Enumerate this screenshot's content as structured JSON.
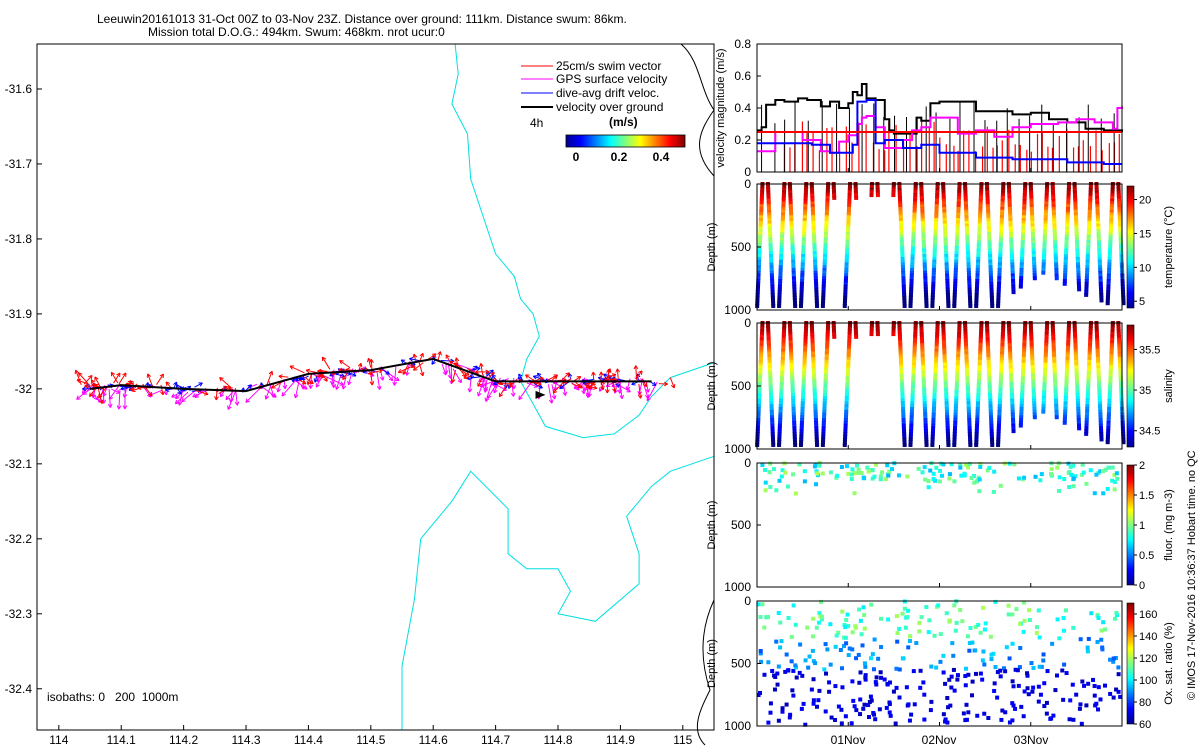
{
  "header": {
    "line1": "Leeuwin20161013 31-Oct 00Z to 03-Nov 23Z. Distance over ground: 111km. Distance swum: 86km.",
    "line2": "Mission total D.O.G.: 494km. Swum: 468km. nrot ucur:0"
  },
  "footer": {
    "copyright": "© IMOS 17-Nov-2016 10:36:37 Hobart time. no QC"
  },
  "colors": {
    "swim": "#ff0000",
    "gps": "#ff00ff",
    "drift": "#0000ff",
    "ground": "#000000",
    "isobath": "#00e0e0"
  },
  "chart_data": [
    {
      "type": "map",
      "x_ticks": [
        "114",
        "114.1",
        "114.2",
        "114.3",
        "114.4",
        "114.5",
        "114.6",
        "114.7",
        "114.8",
        "114.9",
        "115"
      ],
      "y_ticks": [
        "-31.6",
        "-31.7",
        "-31.8",
        "-31.9",
        "-32",
        "-32.1",
        "-32.2",
        "-32.3",
        "-32.4"
      ],
      "xlim": [
        113.965,
        115.05
      ],
      "ylim": [
        -32.455,
        -31.54
      ],
      "legend": [
        {
          "label": "25cm/s swim vector",
          "color": "#ff0000"
        },
        {
          "label": "GPS surface velocity",
          "color": "#ff00ff"
        },
        {
          "label": "dive-avg drift veloc.",
          "color": "#0000ff"
        },
        {
          "label": "velocity over ground",
          "color": "#000000"
        }
      ],
      "time_marker": "4h",
      "colorbar": {
        "label": "(m/s)",
        "ticks": [
          "0",
          "0.2",
          "0.4"
        ],
        "range": [
          0,
          0.5
        ]
      },
      "isobath_note": "isobaths: 0   200  1000m",
      "track": [
        [
          114.05,
          -32.0
        ],
        [
          114.1,
          -31.995
        ],
        [
          114.2,
          -32.0
        ],
        [
          114.3,
          -32.003
        ],
        [
          114.4,
          -31.98
        ],
        [
          114.5,
          -31.975
        ],
        [
          114.6,
          -31.96
        ],
        [
          114.7,
          -31.99
        ],
        [
          114.8,
          -31.99
        ],
        [
          114.95,
          -31.99
        ]
      ],
      "coast": [
        [
          [
            114.635,
            -31.54
          ],
          [
            114.64,
            -31.58
          ],
          [
            114.63,
            -31.62
          ],
          [
            114.655,
            -31.66
          ],
          [
            114.66,
            -31.72
          ],
          [
            114.68,
            -31.77
          ],
          [
            114.7,
            -31.82
          ],
          [
            114.73,
            -31.85
          ],
          [
            114.74,
            -31.88
          ],
          [
            114.76,
            -31.9
          ],
          [
            114.77,
            -31.93
          ],
          [
            114.75,
            -31.96
          ],
          [
            114.74,
            -31.99
          ],
          [
            114.76,
            -32.02
          ],
          [
            114.78,
            -32.05
          ],
          [
            114.84,
            -32.065
          ],
          [
            114.89,
            -32.06
          ],
          [
            114.93,
            -32.035
          ],
          [
            114.95,
            -32.01
          ],
          [
            114.98,
            -31.985
          ],
          [
            115.05,
            -31.965
          ]
        ],
        [
          [
            114.55,
            -32.455
          ],
          [
            114.55,
            -32.37
          ],
          [
            114.57,
            -32.28
          ],
          [
            114.58,
            -32.2
          ],
          [
            114.63,
            -32.15
          ],
          [
            114.66,
            -32.11
          ],
          [
            114.72,
            -32.16
          ],
          [
            114.72,
            -32.22
          ],
          [
            114.75,
            -32.24
          ],
          [
            114.8,
            -32.24
          ],
          [
            114.82,
            -32.27
          ],
          [
            114.8,
            -32.3
          ],
          [
            114.86,
            -32.31
          ],
          [
            114.93,
            -32.26
          ],
          [
            114.93,
            -32.22
          ],
          [
            114.91,
            -32.17
          ],
          [
            114.95,
            -32.13
          ],
          [
            114.98,
            -32.11
          ],
          [
            115.05,
            -32.09
          ]
        ]
      ]
    },
    {
      "type": "line",
      "ylabel": "velocity magnitude (m/s)",
      "y_ticks": [
        "0",
        "0.2",
        "0.4",
        "0.6",
        "0.8"
      ],
      "ylim": [
        0,
        0.8
      ],
      "x_ticks": [
        "01Nov",
        "02Nov",
        "03Nov"
      ],
      "xlim": [
        0,
        4
      ],
      "x_tick_positions": [
        1,
        2,
        3
      ],
      "series": [
        {
          "color": "#000000",
          "x": [
            0,
            0.05,
            0.1,
            0.2,
            0.3,
            0.45,
            0.55,
            0.7,
            0.8,
            0.9,
            1.0,
            1.05,
            1.1,
            1.15,
            1.2,
            1.3,
            1.4,
            1.45,
            1.5,
            1.6,
            1.75,
            1.8,
            1.9,
            2.0,
            2.2,
            2.4,
            2.6,
            2.8,
            3.0,
            3.2,
            3.4,
            3.6,
            3.8,
            4.0
          ],
          "y": [
            0.26,
            0.28,
            0.42,
            0.45,
            0.44,
            0.46,
            0.45,
            0.41,
            0.44,
            0.4,
            0.43,
            0.5,
            0.48,
            0.55,
            0.46,
            0.45,
            0.33,
            0.26,
            0.24,
            0.24,
            0.34,
            0.32,
            0.43,
            0.44,
            0.44,
            0.38,
            0.38,
            0.36,
            0.37,
            0.33,
            0.31,
            0.27,
            0.26,
            0.25
          ]
        },
        {
          "color": "#ff00ff",
          "x": [
            0,
            0.1,
            0.2,
            0.3,
            0.5,
            0.7,
            0.8,
            0.9,
            1.0,
            1.1,
            1.15,
            1.2,
            1.3,
            1.4,
            1.5,
            1.6,
            1.7,
            1.8,
            1.9,
            2.0,
            2.2,
            2.4,
            2.6,
            2.8,
            3.0,
            3.1,
            3.3,
            3.5,
            3.7,
            3.9,
            3.95,
            4.0
          ],
          "y": [
            0.13,
            0.13,
            0.25,
            0.25,
            0.2,
            0.13,
            0.12,
            0.19,
            0.23,
            0.3,
            0.34,
            0.35,
            0.28,
            0.15,
            0.15,
            0.2,
            0.26,
            0.28,
            0.34,
            0.34,
            0.24,
            0.26,
            0.22,
            0.28,
            0.3,
            0.3,
            0.31,
            0.33,
            0.31,
            0.27,
            0.4,
            0.41
          ]
        },
        {
          "color": "#0000ff",
          "x": [
            0,
            0.2,
            0.4,
            0.6,
            0.8,
            0.95,
            1.05,
            1.1,
            1.2,
            1.3,
            1.4,
            1.6,
            1.8,
            2.0,
            2.2,
            2.4,
            2.6,
            2.8,
            3.0,
            3.2,
            3.4,
            3.6,
            3.8,
            4.0
          ],
          "y": [
            0.18,
            0.18,
            0.18,
            0.17,
            0.12,
            0.12,
            0.17,
            0.44,
            0.45,
            0.18,
            0.2,
            0.15,
            0.17,
            0.12,
            0.12,
            0.09,
            0.09,
            0.08,
            0.08,
            0.08,
            0.06,
            0.06,
            0.05,
            0.05
          ]
        },
        {
          "color": "#ff0000",
          "x": [
            0,
            4
          ],
          "y": [
            0.25,
            0.25
          ]
        }
      ]
    },
    {
      "type": "scatter",
      "ylabel": "Depth (m)",
      "y_ticks": [
        "0",
        "500",
        "1000"
      ],
      "ylim": [
        1000,
        0
      ],
      "colorbar": {
        "label": "temperature (°C)",
        "ticks": [
          "5",
          "10",
          "15",
          "20"
        ],
        "range": [
          4,
          22
        ]
      },
      "profile_model": "temperature",
      "dives_count": 28
    },
    {
      "type": "scatter",
      "ylabel": "Depth (m)",
      "y_ticks": [
        "0",
        "500",
        "1000"
      ],
      "ylim": [
        1000,
        0
      ],
      "colorbar": {
        "label": "salinity",
        "ticks": [
          "34.5",
          "35",
          "35.5"
        ],
        "range": [
          34.3,
          35.8
        ]
      },
      "profile_model": "salinity",
      "dives_count": 28
    },
    {
      "type": "scatter",
      "ylabel": "Depth (m)",
      "y_ticks": [
        "0",
        "500",
        "1000"
      ],
      "ylim": [
        1000,
        0
      ],
      "colorbar": {
        "label": "fluor. (mg m-3)",
        "ticks": [
          "0",
          "0.5",
          "1",
          "1.5",
          "2"
        ],
        "range": [
          0,
          2
        ]
      },
      "profile_model": "fluorescence",
      "dives_count": 28
    },
    {
      "type": "scatter",
      "ylabel": "Depth (m)",
      "y_ticks": [
        "0",
        "500",
        "1000"
      ],
      "ylim": [
        1000,
        0
      ],
      "x_ticks": [
        "01Nov",
        "02Nov",
        "03Nov"
      ],
      "x_tick_positions": [
        1,
        2,
        3
      ],
      "colorbar": {
        "label": "Ox. sat. ratio (%)",
        "ticks": [
          "60",
          "80",
          "100",
          "120",
          "140",
          "160"
        ],
        "range": [
          60,
          170
        ]
      },
      "profile_model": "oxygen",
      "dives_count": 28
    }
  ]
}
